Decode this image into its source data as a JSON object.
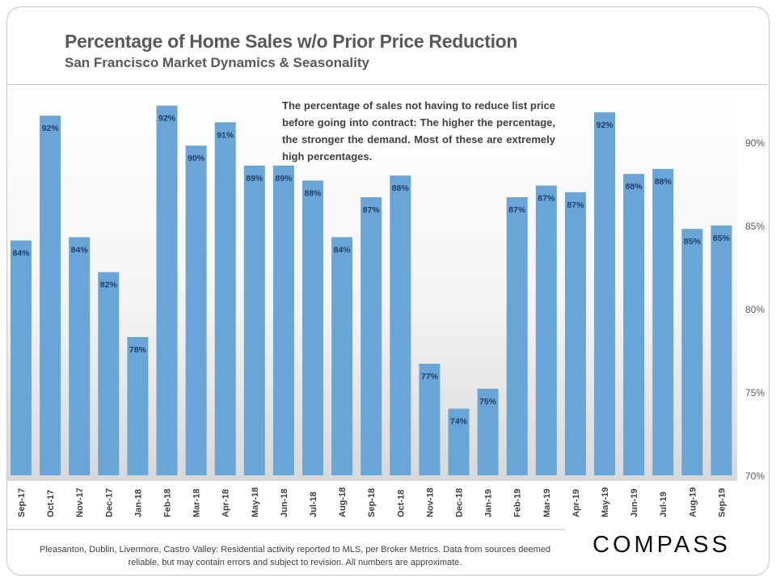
{
  "header": {
    "title": "Percentage of Home Sales w/o Prior Price Reduction",
    "subtitle": "San Francisco Market Dynamics & Seasonality"
  },
  "annotation": "The percentage of sales not having to reduce list price before going into contract: The higher the percentage, the stronger the demand. Most of these are extremely high percentages.",
  "footer": {
    "note": "Pleasanton, Dublin, Livermore, Castro Valley: Residential activity reported to MLS, per Broker Metrics. Data from sources deemed reliable, but may contain errors and subject to revision. All numbers are approximate.",
    "logo": "COMPASS"
  },
  "colors": {
    "bar": "#6aa5d8",
    "label": "#1f3d66"
  },
  "chart_data": {
    "type": "bar",
    "categories": [
      "Sep-17",
      "Oct-17",
      "Nov-17",
      "Dec-17",
      "Jan-18",
      "Feb-18",
      "Mar-18",
      "Apr-18",
      "May-18",
      "Jun-18",
      "Jul-18",
      "Aug-18",
      "Sep-18",
      "Oct-18",
      "Nov-18",
      "Dec-18",
      "Jan-19",
      "Feb-19",
      "Mar-19",
      "Apr-19",
      "May-19",
      "Jun-19",
      "Jul-19",
      "Aug-19",
      "Sep-19"
    ],
    "values": [
      84.1,
      91.6,
      84.3,
      82.2,
      78.3,
      92.2,
      89.8,
      91.2,
      88.6,
      88.6,
      87.7,
      84.3,
      86.7,
      88.0,
      76.7,
      74.0,
      75.2,
      86.7,
      87.4,
      87.0,
      91.8,
      88.1,
      88.4,
      84.8,
      85.0
    ],
    "data_labels": [
      "84%",
      "92%",
      "84%",
      "82%",
      "78%",
      "92%",
      "90%",
      "91%",
      "89%",
      "89%",
      "88%",
      "84%",
      "87%",
      "88%",
      "77%",
      "74%",
      "75%",
      "87%",
      "87%",
      "87%",
      "92%",
      "88%",
      "88%",
      "85%",
      "85%"
    ],
    "ylim": [
      70,
      93
    ],
    "yticks": [
      70,
      75,
      80,
      85,
      90
    ],
    "ytick_labels": [
      "70%",
      "75%",
      "80%",
      "85%",
      "90%"
    ],
    "y_axis_position": "right",
    "grid": false
  }
}
